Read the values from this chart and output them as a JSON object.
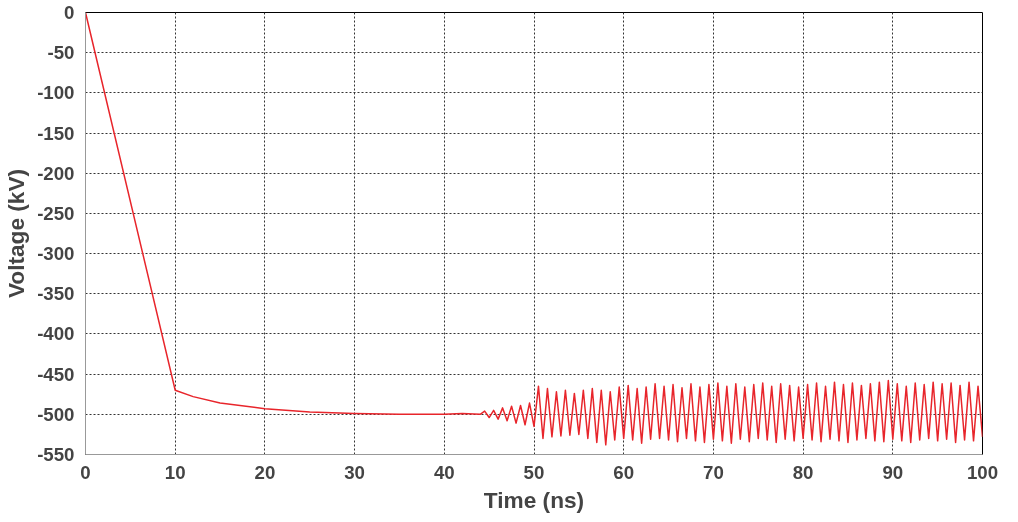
{
  "chart_data": {
    "type": "line",
    "xlabel": "Time (ns)",
    "ylabel": "Voltage (kV)",
    "xlim": [
      0,
      100
    ],
    "ylim": [
      -550,
      0
    ],
    "xticks": [
      0,
      10,
      20,
      30,
      40,
      50,
      60,
      70,
      80,
      90,
      100
    ],
    "yticks": [
      0,
      -50,
      -100,
      -150,
      -200,
      -250,
      -300,
      -350,
      -400,
      -450,
      -500,
      -550
    ],
    "grid": true,
    "line_style": "solid",
    "marker": "none",
    "series": [
      {
        "color": "#e8252b",
        "x": [
          0,
          10,
          12,
          15,
          20,
          25,
          30,
          35,
          40,
          42,
          44,
          44.5,
          45,
          45.5,
          46,
          46.5,
          47,
          47.5,
          48,
          48.5,
          49,
          49.5,
          50,
          50.5,
          51,
          51.5,
          52,
          52.5,
          53,
          53.5,
          54,
          54.5,
          55,
          55.5,
          56,
          56.5,
          57,
          57.5,
          58,
          58.5,
          59,
          59.5,
          60,
          60.5,
          61,
          61.5,
          62,
          62.5,
          63,
          63.5,
          64,
          64.5,
          65,
          65.5,
          66,
          66.5,
          67,
          67.5,
          68,
          68.5,
          69,
          69.5,
          70,
          70.5,
          71,
          71.5,
          72,
          72.5,
          73,
          73.5,
          74,
          74.5,
          75,
          75.5,
          76,
          76.5,
          77,
          77.5,
          78,
          78.5,
          79,
          79.5,
          80,
          80.5,
          81,
          81.5,
          82,
          82.5,
          83,
          83.5,
          84,
          84.5,
          85,
          85.5,
          86,
          86.5,
          87,
          87.5,
          88,
          88.5,
          89,
          89.5,
          90,
          90.5,
          91,
          91.5,
          92,
          92.5,
          93,
          93.5,
          94,
          94.5,
          95,
          95.5,
          96,
          96.5,
          97,
          97.5,
          98,
          98.5,
          99,
          99.5,
          100
        ],
        "values": [
          0,
          -470,
          -478,
          -486,
          -493,
          -497,
          -499,
          -500,
          -500,
          -499,
          -500,
          -496,
          -504,
          -495,
          -506,
          -492,
          -508,
          -490,
          -511,
          -489,
          -513,
          -486,
          -515,
          -465,
          -530,
          -468,
          -528,
          -472,
          -527,
          -470,
          -526,
          -474,
          -525,
          -470,
          -530,
          -468,
          -535,
          -470,
          -538,
          -472,
          -532,
          -466,
          -530,
          -464,
          -532,
          -468,
          -536,
          -466,
          -531,
          -462,
          -530,
          -465,
          -532,
          -463,
          -534,
          -467,
          -530,
          -462,
          -533,
          -466,
          -535,
          -463,
          -531,
          -461,
          -533,
          -465,
          -536,
          -462,
          -531,
          -466,
          -534,
          -463,
          -530,
          -461,
          -532,
          -465,
          -535,
          -462,
          -531,
          -464,
          -533,
          -466,
          -530,
          -463,
          -532,
          -461,
          -534,
          -465,
          -531,
          -460,
          -533,
          -463,
          -535,
          -461,
          -532,
          -464,
          -530,
          -462,
          -533,
          -460,
          -534,
          -458,
          -531,
          -462,
          -533,
          -465,
          -535,
          -461,
          -532,
          -463,
          -530,
          -460,
          -533,
          -462,
          -531,
          -461,
          -535,
          -464,
          -532,
          -460,
          -533,
          -465,
          -528
        ]
      }
    ]
  }
}
